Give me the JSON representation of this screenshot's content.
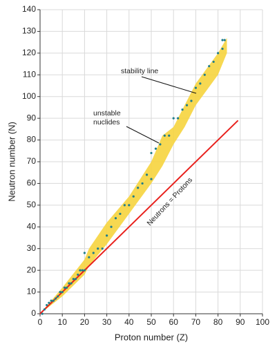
{
  "chart_data": {
    "type": "scatter",
    "xlabel": "Proton number (Z)",
    "ylabel": "Neutron number (N)",
    "xlim": [
      0,
      100
    ],
    "xticks": [
      0,
      10,
      20,
      30,
      40,
      50,
      60,
      70,
      80,
      90,
      100
    ],
    "ylim": [
      0,
      140
    ],
    "yticks": [
      0,
      10,
      20,
      30,
      40,
      50,
      60,
      70,
      80,
      90,
      100,
      110,
      120,
      130,
      140
    ],
    "grid": true,
    "band": {
      "color": "#f6d43e",
      "x": [
        0,
        10,
        20,
        22,
        30,
        40,
        50,
        55,
        60,
        65,
        70,
        80,
        84
      ],
      "lower": [
        0,
        8,
        18,
        22,
        32,
        46,
        60,
        68,
        78,
        86,
        96,
        110,
        120
      ],
      "upper": [
        0,
        12,
        25,
        30,
        42,
        54,
        70,
        82,
        86,
        96,
        106,
        120,
        127
      ]
    },
    "points": {
      "color": "#1f7d8c",
      "x": [
        1,
        2,
        3,
        4,
        5,
        6,
        7,
        8,
        9,
        10,
        11,
        12,
        13,
        14,
        15,
        16,
        17,
        18,
        19,
        20,
        20,
        22,
        24,
        26,
        28,
        30,
        32,
        34,
        36,
        38,
        40,
        42,
        44,
        46,
        48,
        50,
        50,
        52,
        54,
        56,
        58,
        60,
        62,
        64,
        66,
        68,
        70,
        72,
        74,
        76,
        78,
        80,
        82,
        82,
        83
      ],
      "y": [
        0,
        2,
        4,
        5,
        6,
        6,
        7,
        8,
        10,
        10,
        12,
        12,
        14,
        14,
        16,
        16,
        18,
        20,
        20,
        20,
        28,
        26,
        28,
        30,
        30,
        36,
        40,
        44,
        46,
        50,
        50,
        54,
        58,
        60,
        64,
        62,
        74,
        76,
        78,
        82,
        82,
        90,
        90,
        94,
        96,
        98,
        104,
        106,
        110,
        114,
        116,
        120,
        122,
        126,
        126
      ]
    },
    "reference_line": {
      "color": "#e8201c",
      "x": [
        0,
        89
      ],
      "y": [
        0,
        89
      ]
    },
    "annotations": [
      "stability line",
      "unstable",
      "nuclides",
      "Neutrons = Protons"
    ]
  }
}
